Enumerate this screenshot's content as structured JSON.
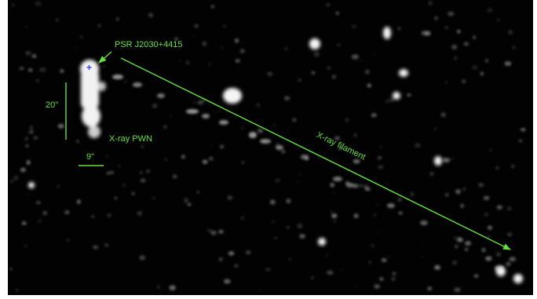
{
  "colors": {
    "background": "#020202",
    "emission": "#f2f2f2",
    "annotation": "#66e040",
    "pulsar_marker": "#2a3cff"
  },
  "annotations": {
    "pulsar_label": "PSR J2030+4415",
    "pwn_label": "X-ray PWN",
    "filament_label": "X-ray filament",
    "length_scale_label": "20\"",
    "width_scale_label": "9\""
  },
  "markers": {
    "pulsar_symbol": "+"
  }
}
